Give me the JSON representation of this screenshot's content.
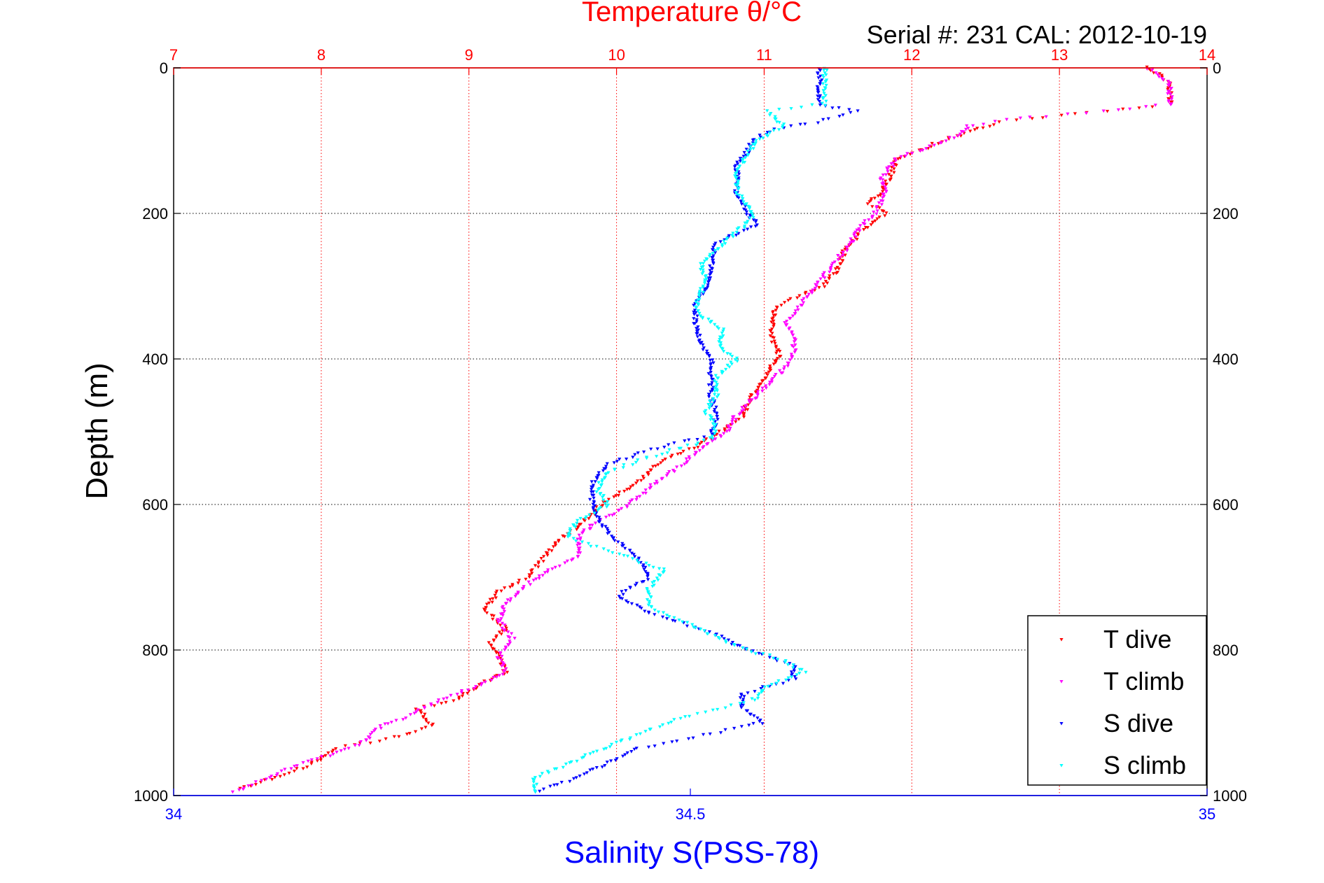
{
  "chart_data": {
    "type": "scatter",
    "title": "Temperature θ/°C",
    "subtitle": "Serial #: 231  CAL: 2012-10-19",
    "ylabel": "Depth (m)",
    "xlabel_bottom": "Salinity S(PSS-78)",
    "ylim": [
      0,
      1000
    ],
    "y_reversed": true,
    "yticks": [
      "0",
      "200",
      "400",
      "600",
      "800",
      "1000"
    ],
    "temperature_axis": {
      "position": "top",
      "range": [
        7,
        14
      ],
      "ticks": [
        "7",
        "8",
        "9",
        "10",
        "11",
        "12",
        "13",
        "14"
      ],
      "color": "#ff0000"
    },
    "salinity_axis": {
      "position": "bottom",
      "range": [
        34,
        35
      ],
      "ticks": [
        "34",
        "34.5",
        "35"
      ],
      "color": "#0000ff"
    },
    "grid": true,
    "legend_position": "bottom-right",
    "series": [
      {
        "name": "T dive",
        "axis": "temperature",
        "color": "#ff0000",
        "points": [
          [
            13.6,
            0
          ],
          [
            13.75,
            20
          ],
          [
            13.75,
            50
          ],
          [
            13.2,
            62
          ],
          [
            12.6,
            75
          ],
          [
            12.35,
            90
          ],
          [
            12.15,
            105
          ],
          [
            11.9,
            125
          ],
          [
            11.85,
            150
          ],
          [
            11.8,
            170
          ],
          [
            11.7,
            185
          ],
          [
            11.82,
            200
          ],
          [
            11.65,
            225
          ],
          [
            11.55,
            250
          ],
          [
            11.5,
            275
          ],
          [
            11.4,
            300
          ],
          [
            11.1,
            325
          ],
          [
            11.05,
            345
          ],
          [
            11.05,
            370
          ],
          [
            11.1,
            395
          ],
          [
            11.0,
            425
          ],
          [
            10.9,
            455
          ],
          [
            10.85,
            480
          ],
          [
            10.7,
            500
          ],
          [
            10.55,
            520
          ],
          [
            10.3,
            540
          ],
          [
            10.2,
            560
          ],
          [
            10.1,
            575
          ],
          [
            9.9,
            600
          ],
          [
            9.75,
            630
          ],
          [
            9.6,
            650
          ],
          [
            9.5,
            675
          ],
          [
            9.4,
            700
          ],
          [
            9.2,
            720
          ],
          [
            9.1,
            745
          ],
          [
            9.25,
            770
          ],
          [
            9.15,
            790
          ],
          [
            9.2,
            810
          ],
          [
            9.25,
            830
          ],
          [
            9.05,
            850
          ],
          [
            8.9,
            870
          ],
          [
            8.65,
            880
          ],
          [
            8.75,
            905
          ],
          [
            8.5,
            920
          ],
          [
            8.1,
            935
          ],
          [
            7.95,
            955
          ],
          [
            7.7,
            975
          ],
          [
            7.45,
            990
          ]
        ]
      },
      {
        "name": "T climb",
        "axis": "temperature",
        "color": "#ff00ff",
        "points": [
          [
            13.6,
            0
          ],
          [
            13.75,
            20
          ],
          [
            13.75,
            50
          ],
          [
            13.3,
            60
          ],
          [
            12.8,
            68
          ],
          [
            12.4,
            78
          ],
          [
            12.3,
            95
          ],
          [
            12.1,
            110
          ],
          [
            11.9,
            125
          ],
          [
            11.8,
            150
          ],
          [
            11.82,
            175
          ],
          [
            11.75,
            200
          ],
          [
            11.65,
            220
          ],
          [
            11.55,
            250
          ],
          [
            11.45,
            275
          ],
          [
            11.35,
            300
          ],
          [
            11.25,
            325
          ],
          [
            11.15,
            350
          ],
          [
            11.2,
            375
          ],
          [
            11.2,
            395
          ],
          [
            11.1,
            420
          ],
          [
            10.95,
            450
          ],
          [
            10.8,
            480
          ],
          [
            10.75,
            500
          ],
          [
            10.55,
            525
          ],
          [
            10.45,
            545
          ],
          [
            10.3,
            565
          ],
          [
            10.15,
            590
          ],
          [
            10.05,
            605
          ],
          [
            9.85,
            625
          ],
          [
            9.75,
            645
          ],
          [
            9.75,
            670
          ],
          [
            9.55,
            690
          ],
          [
            9.4,
            710
          ],
          [
            9.25,
            735
          ],
          [
            9.2,
            760
          ],
          [
            9.3,
            785
          ],
          [
            9.2,
            810
          ],
          [
            9.25,
            830
          ],
          [
            9.05,
            850
          ],
          [
            8.8,
            870
          ],
          [
            8.6,
            890
          ],
          [
            8.4,
            905
          ],
          [
            8.3,
            925
          ],
          [
            8.05,
            945
          ],
          [
            7.75,
            965
          ],
          [
            7.6,
            980
          ],
          [
            7.4,
            995
          ]
        ]
      },
      {
        "name": "S dive",
        "axis": "salinity",
        "color": "#0000ff",
        "points": [
          [
            34.625,
            0
          ],
          [
            34.625,
            20
          ],
          [
            34.625,
            50
          ],
          [
            34.66,
            60
          ],
          [
            34.63,
            72
          ],
          [
            34.58,
            85
          ],
          [
            34.56,
            100
          ],
          [
            34.555,
            115
          ],
          [
            34.545,
            130
          ],
          [
            34.545,
            150
          ],
          [
            34.545,
            175
          ],
          [
            34.555,
            200
          ],
          [
            34.565,
            215
          ],
          [
            34.525,
            240
          ],
          [
            34.52,
            270
          ],
          [
            34.515,
            300
          ],
          [
            34.505,
            325
          ],
          [
            34.505,
            350
          ],
          [
            34.51,
            375
          ],
          [
            34.52,
            400
          ],
          [
            34.52,
            425
          ],
          [
            34.52,
            450
          ],
          [
            34.525,
            480
          ],
          [
            34.52,
            505
          ],
          [
            34.46,
            525
          ],
          [
            34.42,
            545
          ],
          [
            34.405,
            570
          ],
          [
            34.405,
            595
          ],
          [
            34.41,
            620
          ],
          [
            34.425,
            645
          ],
          [
            34.45,
            675
          ],
          [
            34.46,
            700
          ],
          [
            34.43,
            725
          ],
          [
            34.46,
            750
          ],
          [
            34.52,
            775
          ],
          [
            34.555,
            800
          ],
          [
            34.6,
            820
          ],
          [
            34.6,
            840
          ],
          [
            34.55,
            860
          ],
          [
            34.55,
            880
          ],
          [
            34.57,
            900
          ],
          [
            34.52,
            915
          ],
          [
            34.45,
            935
          ],
          [
            34.42,
            955
          ],
          [
            34.39,
            975
          ],
          [
            34.35,
            995
          ]
        ]
      },
      {
        "name": "S climb",
        "axis": "salinity",
        "color": "#00ffff",
        "points": [
          [
            34.63,
            0
          ],
          [
            34.63,
            20
          ],
          [
            34.63,
            50
          ],
          [
            34.575,
            60
          ],
          [
            34.59,
            80
          ],
          [
            34.565,
            100
          ],
          [
            34.555,
            120
          ],
          [
            34.545,
            145
          ],
          [
            34.545,
            170
          ],
          [
            34.555,
            190
          ],
          [
            34.56,
            205
          ],
          [
            34.545,
            225
          ],
          [
            34.525,
            250
          ],
          [
            34.51,
            270
          ],
          [
            34.515,
            290
          ],
          [
            34.51,
            310
          ],
          [
            34.505,
            335
          ],
          [
            34.53,
            360
          ],
          [
            34.53,
            385
          ],
          [
            34.545,
            400
          ],
          [
            34.525,
            425
          ],
          [
            34.525,
            450
          ],
          [
            34.515,
            470
          ],
          [
            34.525,
            495
          ],
          [
            34.52,
            510
          ],
          [
            34.46,
            535
          ],
          [
            34.42,
            555
          ],
          [
            34.41,
            580
          ],
          [
            34.42,
            600
          ],
          [
            34.39,
            625
          ],
          [
            34.38,
            645
          ],
          [
            34.425,
            665
          ],
          [
            34.475,
            690
          ],
          [
            34.46,
            715
          ],
          [
            34.46,
            740
          ],
          [
            34.5,
            765
          ],
          [
            34.535,
            790
          ],
          [
            34.59,
            815
          ],
          [
            34.61,
            830
          ],
          [
            34.575,
            850
          ],
          [
            34.56,
            870
          ],
          [
            34.5,
            890
          ],
          [
            34.45,
            915
          ],
          [
            34.4,
            945
          ],
          [
            34.35,
            975
          ],
          [
            34.35,
            995
          ]
        ]
      }
    ]
  }
}
